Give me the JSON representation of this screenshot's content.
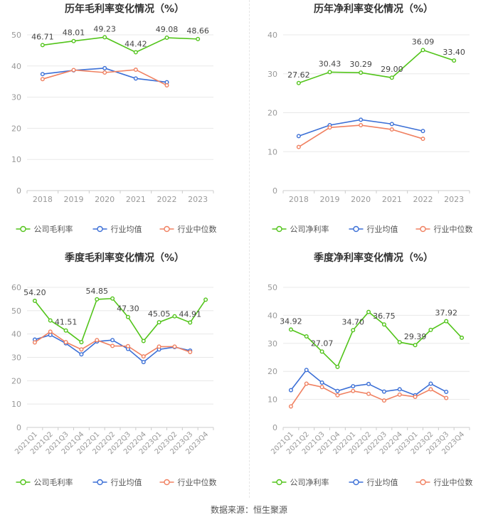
{
  "colors": {
    "company": "#52c41a",
    "avg": "#3b6fd6",
    "median": "#f08060",
    "grid": "#e8e8e8",
    "axis": "#999999"
  },
  "legend": {
    "company_gross": "公司毛利率",
    "company_net": "公司净利率",
    "avg": "行业均值",
    "median": "行业中位数"
  },
  "footer": {
    "source": "数据来源：恒生聚源"
  },
  "chart_data": [
    {
      "type": "line",
      "title": "历年毛利率变化情况（%）",
      "categories": [
        "2018",
        "2019",
        "2020",
        "2021",
        "2022",
        "2023"
      ],
      "ylim": [
        0,
        50
      ],
      "yticks": [
        0,
        10,
        20,
        30,
        40,
        50
      ],
      "series": [
        {
          "name": "公司毛利率",
          "values": [
            46.71,
            48.01,
            49.23,
            44.42,
            49.08,
            48.66
          ],
          "labels": [
            "46.71",
            "48.01",
            "49.23",
            "44.42",
            "49.08",
            "48.66"
          ]
        },
        {
          "name": "行业均值",
          "values": [
            37.4,
            38.6,
            39.3,
            36.0,
            34.8,
            null
          ]
        },
        {
          "name": "行业中位数",
          "values": [
            35.8,
            38.7,
            37.9,
            38.8,
            33.8,
            null
          ]
        }
      ]
    },
    {
      "type": "line",
      "title": "历年净利率变化情况（%）",
      "categories": [
        "2018",
        "2019",
        "2020",
        "2021",
        "2022",
        "2023"
      ],
      "ylim": [
        0,
        40
      ],
      "yticks": [
        0,
        10,
        20,
        30,
        40
      ],
      "series": [
        {
          "name": "公司净利率",
          "values": [
            27.62,
            30.43,
            30.29,
            29.0,
            36.09,
            33.4
          ],
          "labels": [
            "27.62",
            "30.43",
            "30.29",
            "29.00",
            "36.09",
            "33.40"
          ]
        },
        {
          "name": "行业均值",
          "values": [
            14.0,
            16.8,
            18.2,
            17.1,
            15.3,
            null
          ]
        },
        {
          "name": "行业中位数",
          "values": [
            11.2,
            16.2,
            16.8,
            15.7,
            13.3,
            null
          ]
        }
      ]
    },
    {
      "type": "line",
      "title": "季度毛利率变化情况（%）",
      "categories": [
        "2021Q1",
        "2021Q2",
        "2021Q3",
        "2021Q4",
        "2022Q1",
        "2022Q2",
        "2022Q3",
        "2022Q4",
        "2023Q1",
        "2023Q2",
        "2023Q3",
        "2023Q4"
      ],
      "ylim": [
        0,
        60
      ],
      "yticks": [
        0,
        10,
        20,
        30,
        40,
        50,
        60
      ],
      "series": [
        {
          "name": "公司毛利率",
          "values": [
            54.2,
            45.8,
            41.51,
            36.5,
            54.85,
            55.2,
            47.3,
            37.0,
            45.05,
            47.6,
            44.91,
            54.7
          ],
          "labels": [
            "54.20",
            "",
            "41.51",
            "",
            "54.85",
            "",
            "47.30",
            "",
            "45.05",
            "",
            "44.91",
            ""
          ]
        },
        {
          "name": "行业均值",
          "values": [
            37.6,
            39.6,
            36.0,
            31.3,
            36.8,
            37.4,
            33.6,
            28.0,
            33.4,
            34.4,
            32.9,
            null
          ]
        },
        {
          "name": "行业中位数",
          "values": [
            36.4,
            41.0,
            36.5,
            33.4,
            37.4,
            34.9,
            34.8,
            30.4,
            34.6,
            34.6,
            32.3,
            null
          ]
        }
      ]
    },
    {
      "type": "line",
      "title": "季度净利率变化情况（%）",
      "categories": [
        "2021Q1",
        "2021Q2",
        "2021Q3",
        "2021Q4",
        "2022Q1",
        "2022Q2",
        "2022Q3",
        "2022Q4",
        "2023Q1",
        "2023Q2",
        "2023Q3",
        "2023Q4"
      ],
      "ylim": [
        0,
        50
      ],
      "yticks": [
        0,
        10,
        20,
        30,
        40,
        50
      ],
      "series": [
        {
          "name": "公司净利率",
          "values": [
            34.92,
            32.5,
            27.07,
            21.6,
            34.7,
            41.2,
            36.75,
            30.4,
            29.39,
            34.8,
            37.92,
            32.0
          ],
          "labels": [
            "34.92",
            "",
            "27.07",
            "",
            "34.70",
            "",
            "36.75",
            "",
            "29.39",
            "",
            "37.92",
            ""
          ]
        },
        {
          "name": "行业均值",
          "values": [
            13.3,
            20.5,
            16.0,
            13.0,
            14.7,
            15.5,
            12.8,
            13.6,
            11.5,
            15.6,
            12.7,
            null
          ]
        },
        {
          "name": "行业中位数",
          "values": [
            7.5,
            15.6,
            14.4,
            11.5,
            13.0,
            12.0,
            9.6,
            11.7,
            10.9,
            13.6,
            10.5,
            null
          ]
        }
      ]
    }
  ]
}
